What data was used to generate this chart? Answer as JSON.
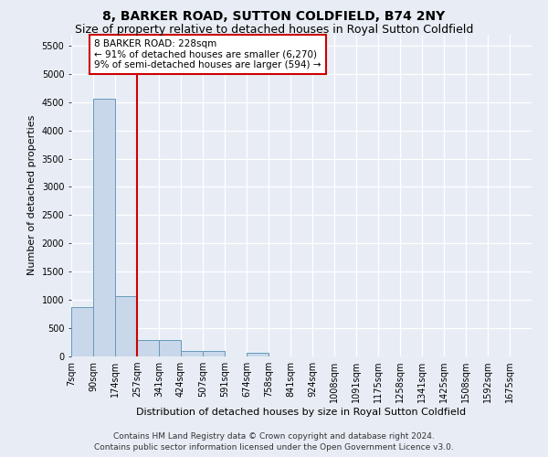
{
  "title": "8, BARKER ROAD, SUTTON COLDFIELD, B74 2NY",
  "subtitle": "Size of property relative to detached houses in Royal Sutton Coldfield",
  "xlabel": "Distribution of detached houses by size in Royal Sutton Coldfield",
  "ylabel": "Number of detached properties",
  "footer_line1": "Contains HM Land Registry data © Crown copyright and database right 2024.",
  "footer_line2": "Contains public sector information licensed under the Open Government Licence v3.0.",
  "annotation_line1": "8 BARKER ROAD: 228sqm",
  "annotation_line2": "← 91% of detached houses are smaller (6,270)",
  "annotation_line3": "9% of semi-detached houses are larger (594) →",
  "bar_color": "#c8d8ea",
  "bar_edge_color": "#6699bb",
  "property_line_color": "#cc0000",
  "property_line_x": 257,
  "categories": [
    7,
    90,
    174,
    257,
    341,
    424,
    507,
    591,
    674,
    758,
    841,
    924,
    1008,
    1091,
    1175,
    1258,
    1341,
    1425,
    1508,
    1592,
    1675
  ],
  "bin_width": 83,
  "values": [
    870,
    4560,
    1060,
    290,
    290,
    90,
    90,
    0,
    60,
    0,
    0,
    0,
    0,
    0,
    0,
    0,
    0,
    0,
    0,
    0,
    0
  ],
  "ylim": [
    0,
    5700
  ],
  "yticks": [
    0,
    500,
    1000,
    1500,
    2000,
    2500,
    3000,
    3500,
    4000,
    4500,
    5000,
    5500
  ],
  "background_color": "#e8edf5",
  "grid_color": "#ffffff",
  "title_fontsize": 10,
  "subtitle_fontsize": 9,
  "axis_label_fontsize": 8,
  "tick_fontsize": 7,
  "annotation_fontsize": 7.5,
  "footer_fontsize": 6.5
}
